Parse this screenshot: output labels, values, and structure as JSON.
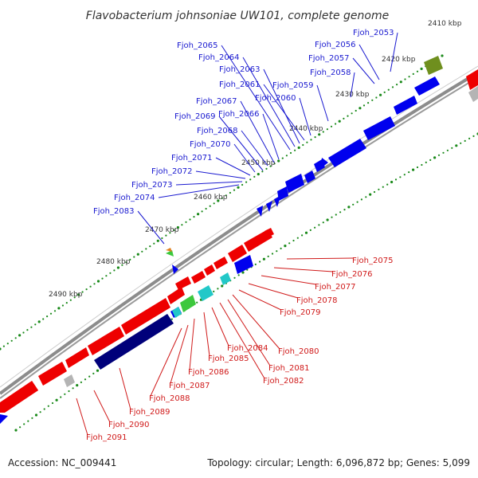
{
  "title": "Flavobacterium johnsoniae UW101, complete genome",
  "footer": {
    "accession": "Accession: NC_009441",
    "summary": "Topology: circular; Length: 6,096,872 bp; Genes: 5,099"
  },
  "colors": {
    "forward_gene": "#0000ee",
    "reverse_gene": "#ee0000",
    "dark_gene": "#00007a",
    "rna_green": "#3cc83c",
    "rna_olive": "#6f8f1e",
    "rna_cyan": "#22c8c8",
    "pseudo_grey": "#b4b4b4",
    "backbone": "#888888",
    "tick": "#1a8a1a",
    "top_label": "#1a1ad0",
    "bottom_label": "#d01a1a"
  },
  "scale_labels": [
    "2410 kbp",
    "2420 kbp",
    "2430 kbp",
    "2440 kbp",
    "2450 kbp",
    "2460 kbp",
    "2470 kbp",
    "2480 kbp",
    "2490 kbp"
  ],
  "top_genes": [
    "Fjoh_2053",
    "Fjoh_2056",
    "Fjoh_2057",
    "Fjoh_2058",
    "Fjoh_2059",
    "Fjoh_2060",
    "Fjoh_2061",
    "Fjoh_2063",
    "Fjoh_2064",
    "Fjoh_2065",
    "Fjoh_2066",
    "Fjoh_2067",
    "Fjoh_2068",
    "Fjoh_2069",
    "Fjoh_2070",
    "Fjoh_2071",
    "Fjoh_2072",
    "Fjoh_2073",
    "Fjoh_2074",
    "Fjoh_2083"
  ],
  "bottom_genes": [
    "Fjoh_2075",
    "Fjoh_2076",
    "Fjoh_2077",
    "Fjoh_2078",
    "Fjoh_2079",
    "Fjoh_2080",
    "Fjoh_2081",
    "Fjoh_2082",
    "Fjoh_2084",
    "Fjoh_2085",
    "Fjoh_2086",
    "Fjoh_2087",
    "Fjoh_2088",
    "Fjoh_2089",
    "Fjoh_2090",
    "Fjoh_2091"
  ]
}
